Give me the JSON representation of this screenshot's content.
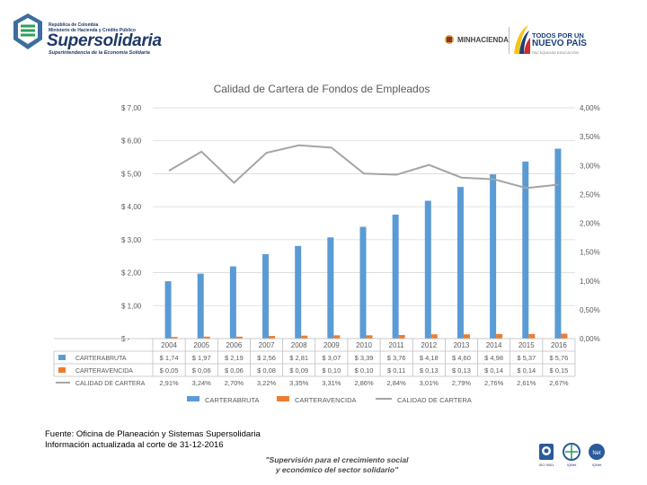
{
  "header": {
    "logo_line1": "República de Colombia",
    "logo_line2": "Ministerio de Hacienda y Crédito Público",
    "logo_name": "Supersolidaria",
    "logo_subtitle": "Superintendencia de la Economía Solidaria",
    "minhacienda": "MINHACIENDA",
    "tpnp_line1": "TODOS POR UN",
    "tpnp_line2": "NUEVO PAÍS",
    "tpnp_line3": "PAZ  EQUIDAD  EDUCACIÓN"
  },
  "chart_data": {
    "type": "bar",
    "title": "Calidad de Cartera de Fondos de Empleados",
    "categories": [
      "2004",
      "2005",
      "2006",
      "2007",
      "2008",
      "2009",
      "2010",
      "2011",
      "2012",
      "2013",
      "2014",
      "2015",
      "2016"
    ],
    "y_left_ticks": [
      "$ 7,00",
      "$ 6,00",
      "$ 5,00",
      "$ 4,00",
      "$ 3,00",
      "$ 2,00",
      "$ 1,00",
      "$ -"
    ],
    "y_left_range": [
      0,
      7
    ],
    "y_right_ticks": [
      "4,00%",
      "3,50%",
      "3,00%",
      "2,50%",
      "2,00%",
      "1,50%",
      "1,00%",
      "0,50%",
      "0,00%"
    ],
    "y_right_range": [
      0,
      4
    ],
    "grid": true,
    "legend_position": "bottom",
    "series": [
      {
        "name": "CARTERABRUTA",
        "type": "bar",
        "axis": "left",
        "color": "#5b9bd5",
        "values": [
          1.74,
          1.97,
          2.19,
          2.56,
          2.81,
          3.07,
          3.39,
          3.76,
          4.18,
          4.6,
          4.98,
          5.37,
          5.76
        ],
        "labels": [
          "$ 1,74",
          "$ 1,97",
          "$ 2,19",
          "$ 2,56",
          "$ 2,81",
          "$ 3,07",
          "$ 3,39",
          "$ 3,76",
          "$ 4,18",
          "$ 4,60",
          "$ 4,98",
          "$ 5,37",
          "$ 5,76"
        ]
      },
      {
        "name": "CARTERAVENCIDA",
        "type": "bar",
        "axis": "left",
        "color": "#ed7d31",
        "values": [
          0.05,
          0.06,
          0.06,
          0.08,
          0.09,
          0.1,
          0.1,
          0.11,
          0.13,
          0.13,
          0.14,
          0.14,
          0.15
        ],
        "labels": [
          "$ 0,05",
          "$ 0,06",
          "$ 0,06",
          "$ 0,08",
          "$ 0,09",
          "$ 0,10",
          "$ 0,10",
          "$ 0,11",
          "$ 0,13",
          "$ 0,13",
          "$ 0,14",
          "$ 0,14",
          "$ 0,15"
        ]
      },
      {
        "name": "CALIDAD DE CARTERA",
        "type": "line",
        "axis": "right",
        "color": "#a5a5a5",
        "values": [
          2.91,
          3.24,
          2.7,
          3.22,
          3.35,
          3.31,
          2.86,
          2.84,
          3.01,
          2.79,
          2.76,
          2.61,
          2.67
        ],
        "labels": [
          "2,91%",
          "3,24%",
          "2,70%",
          "3,22%",
          "3,35%",
          "3,31%",
          "2,86%",
          "2,84%",
          "3,01%",
          "2,79%",
          "2,76%",
          "2,61%",
          "2,67%"
        ]
      }
    ]
  },
  "footer": {
    "source": "Fuente: Oficina de Planeación y Sistemas Supersolidaria",
    "updated": "Información actualizada al corte de 31-12-2016",
    "slogan_line1": "\"Supervisión para el crecimiento social",
    "slogan_line2": "y económico del sector solidario\"",
    "cert_labels": [
      "ISO 9001",
      "IQNet",
      "IQNet"
    ]
  }
}
